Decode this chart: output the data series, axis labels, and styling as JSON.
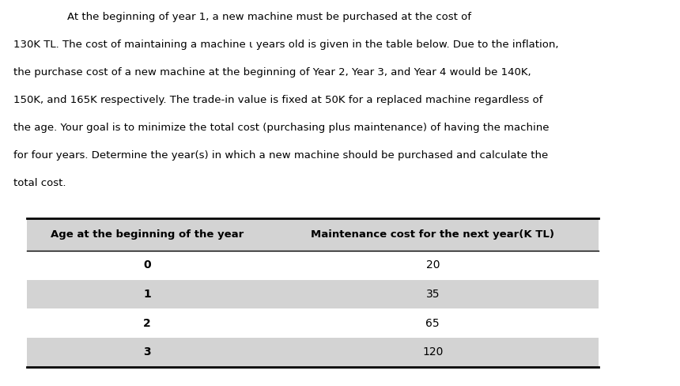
{
  "paragraph": "At the beginning of year 1, a new machine must be purchased at the cost of 130K TL. The cost of maintaining a machine ι years old is given in the table below. Due to the inflation, the purchase cost of a new machine at the beginning of Year 2, Year 3, and Year 4 would be 140K, 150K, and 165K respectively. The trade-in value is fixed at 50K for a replaced machine regardless of the age. Your goal is to minimize the total cost (purchasing plus maintenance) of having the machine for four years. Determine the year(s) in which a new machine should be purchased and calculate the total cost.",
  "paragraph_lines": [
    "At the beginning of year 1, a new machine must be purchased at the cost of",
    "130K TL. The cost of maintaining a machine ℹ years old is given in the table below. Due to the inflation,",
    "the purchase cost of a new machine at the beginning of Year 2, Year 3, and Year 4 would be 140K,",
    "150K, and 165K respectively. The trade-in value is fixed at 50K for a replaced machine regardless of",
    "the age. Your goal is to minimize the total cost (purchasing plus maintenance) of having the machine",
    "for four years. Determine the year(s) in which a new machine should be purchased and calculate the",
    "total cost."
  ],
  "col1_header": "Age at the beginning of the year",
  "col2_header": "Maintenance cost for the next year(K TL)",
  "ages": [
    "0",
    "1",
    "2",
    "3"
  ],
  "costs": [
    "20",
    "35",
    "65",
    "120"
  ],
  "row_colors": [
    "#ffffff",
    "#d3d3d3",
    "#ffffff",
    "#d3d3d3"
  ],
  "header_bg": "#d3d3d3",
  "table_line_color": "#000000",
  "text_color": "#000000",
  "bg_color": "#ffffff"
}
